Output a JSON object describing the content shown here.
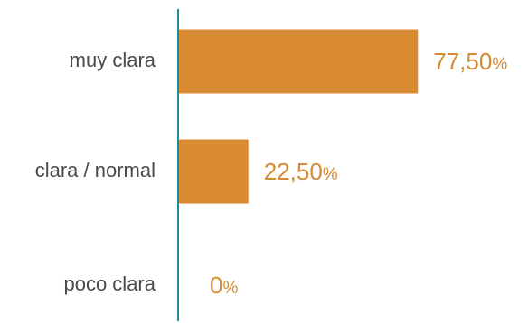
{
  "chart_data": {
    "type": "bar",
    "orientation": "horizontal",
    "categories": [
      "muy clara",
      "clara / normal",
      "poco clara"
    ],
    "values": [
      77.5,
      22.5,
      0
    ],
    "value_labels": [
      "77,50",
      "22,50",
      "0"
    ],
    "value_unit": "%",
    "xlim": [
      0,
      100
    ],
    "title": "",
    "xlabel": "",
    "ylabel": "",
    "grid": false,
    "legend": "none",
    "colors": {
      "bar": "#D98B33",
      "value_text": "#D98B33",
      "category_text": "#4a4a4a",
      "axis": "#1E8C99"
    }
  }
}
